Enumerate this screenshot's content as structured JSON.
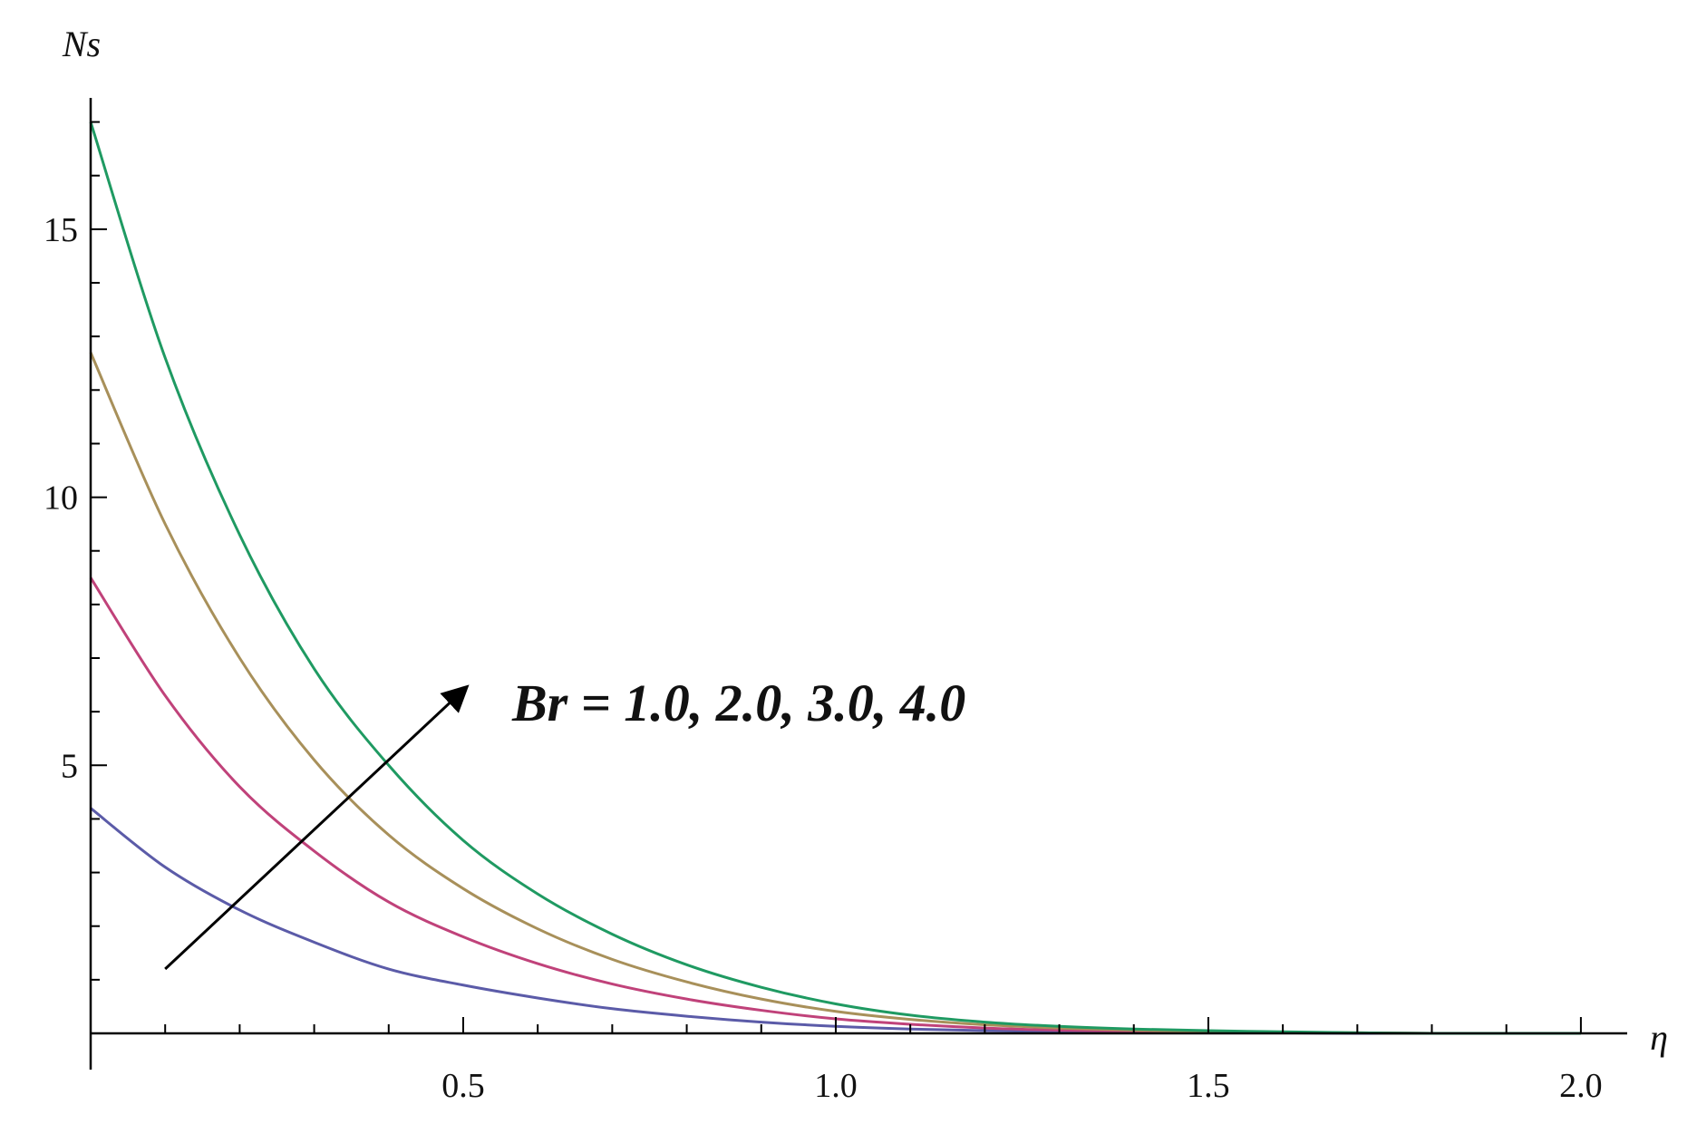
{
  "chart_data": {
    "type": "line",
    "ylabel": "Ns",
    "xlabel": "η",
    "xlim": [
      0,
      2.05
    ],
    "ylim": [
      0,
      17.5
    ],
    "x_ticks": [
      0.5,
      1.0,
      1.5,
      2.0
    ],
    "x_tick_labels": [
      "0.5",
      "1.0",
      "1.5",
      "2.0"
    ],
    "y_ticks": [
      5,
      10,
      15
    ],
    "y_tick_labels": [
      "5",
      "10",
      "15"
    ],
    "x_minor_step": 0.1,
    "y_minor_step": 1,
    "grid": false,
    "x": [
      0,
      0.1,
      0.2,
      0.3,
      0.4,
      0.5,
      0.6,
      0.7,
      0.8,
      0.9,
      1.0,
      1.1,
      1.2,
      1.3,
      1.4,
      1.5,
      1.6,
      1.7,
      1.8,
      1.9,
      2.0
    ],
    "series": [
      {
        "color": "#5b5ba8",
        "values": [
          4.2,
          3.1,
          2.3,
          1.7,
          1.2,
          0.9,
          0.66,
          0.46,
          0.32,
          0.21,
          0.13,
          0.08,
          0.05,
          0.03,
          0.02,
          0.01,
          0.01,
          0.0,
          0.0,
          0.0,
          0.0
        ]
      },
      {
        "color": "#c0427a",
        "values": [
          8.5,
          6.3,
          4.6,
          3.4,
          2.45,
          1.8,
          1.3,
          0.92,
          0.64,
          0.43,
          0.27,
          0.17,
          0.1,
          0.06,
          0.04,
          0.02,
          0.01,
          0.01,
          0.0,
          0.0,
          0.0
        ]
      },
      {
        "color": "#a8905a",
        "values": [
          12.7,
          9.5,
          7.0,
          5.1,
          3.7,
          2.7,
          1.95,
          1.38,
          0.96,
          0.64,
          0.41,
          0.26,
          0.16,
          0.1,
          0.06,
          0.03,
          0.02,
          0.01,
          0.0,
          0.0,
          0.0
        ]
      },
      {
        "color": "#1f9a62",
        "values": [
          17.0,
          12.6,
          9.3,
          6.8,
          5.0,
          3.6,
          2.6,
          1.85,
          1.28,
          0.86,
          0.55,
          0.34,
          0.21,
          0.13,
          0.08,
          0.05,
          0.03,
          0.01,
          0.0,
          0.0,
          0.0
        ]
      }
    ],
    "annotation": {
      "text": "Br = 1.0, 2.0, 3.0, 4.0",
      "arrow": {
        "from": [
          0.1,
          1.2
        ],
        "to": [
          0.5,
          6.4
        ]
      }
    }
  }
}
